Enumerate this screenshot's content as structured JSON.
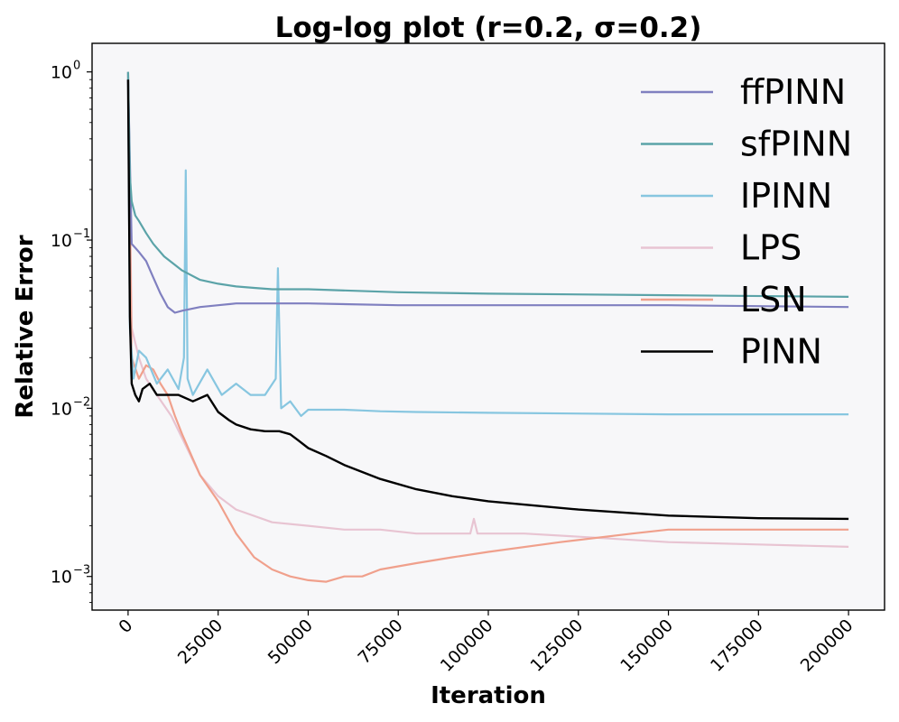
{
  "chart_data": {
    "type": "line",
    "title": "Log-log plot (r=0.2, σ=0.2)",
    "xlabel": "Iteration",
    "ylabel": "Relative Error",
    "xlim": [
      -10000,
      210000
    ],
    "ylim_log10": [
      -3.2,
      0.17
    ],
    "yscale": "log",
    "grid": false,
    "legend_position": "top-right",
    "background": "#f7f7f9",
    "x_ticks": [
      0,
      25000,
      50000,
      75000,
      100000,
      125000,
      150000,
      175000,
      200000
    ],
    "x_tick_labels": [
      "0",
      "25000",
      "50000",
      "75000",
      "100000",
      "125000",
      "150000",
      "175000",
      "200000"
    ],
    "y_ticks": [
      0.001,
      0.01,
      0.1,
      1
    ],
    "y_tick_labels": [
      {
        "base": "10",
        "exp": "−3"
      },
      {
        "base": "10",
        "exp": "−2"
      },
      {
        "base": "10",
        "exp": "−1"
      },
      {
        "base": "10",
        "exp": "0"
      }
    ],
    "series": [
      {
        "name": "ffPINN",
        "color": "#8080c0",
        "x": [
          0,
          1000,
          2000,
          3000,
          5000,
          7000,
          9000,
          11000,
          13000,
          15000,
          20000,
          25000,
          30000,
          40000,
          50000,
          75000,
          100000,
          150000,
          200000
        ],
        "y": [
          0.9,
          0.095,
          0.09,
          0.085,
          0.075,
          0.06,
          0.048,
          0.04,
          0.037,
          0.038,
          0.04,
          0.041,
          0.042,
          0.042,
          0.042,
          0.041,
          0.041,
          0.041,
          0.04
        ]
      },
      {
        "name": "sfPINN",
        "color": "#5ba3a8",
        "x": [
          0,
          500,
          1000,
          2000,
          3000,
          5000,
          7000,
          10000,
          15000,
          20000,
          25000,
          30000,
          35000,
          40000,
          50000,
          75000,
          100000,
          150000,
          200000
        ],
        "y": [
          1.0,
          0.24,
          0.17,
          0.14,
          0.13,
          0.11,
          0.095,
          0.08,
          0.066,
          0.058,
          0.055,
          0.053,
          0.052,
          0.051,
          0.051,
          0.049,
          0.048,
          0.047,
          0.046
        ]
      },
      {
        "name": "IPINN",
        "color": "#87c6e0",
        "x": [
          0,
          500,
          1500,
          3000,
          5000,
          8000,
          11000,
          14000,
          15500,
          16000,
          16500,
          18000,
          22000,
          26000,
          30000,
          34000,
          38000,
          41000,
          41600,
          42500,
          45000,
          48000,
          50000,
          55000,
          60000,
          65000,
          70000,
          80000,
          100000,
          150000,
          200000
        ],
        "y": [
          1.0,
          0.03,
          0.015,
          0.022,
          0.02,
          0.014,
          0.017,
          0.013,
          0.02,
          0.26,
          0.015,
          0.012,
          0.017,
          0.012,
          0.014,
          0.012,
          0.012,
          0.015,
          0.068,
          0.01,
          0.011,
          0.009,
          0.0098,
          0.0098,
          0.0098,
          0.0097,
          0.0096,
          0.0095,
          0.0094,
          0.0092,
          0.0092
        ]
      },
      {
        "name": "LPS",
        "color": "#e8c4d2",
        "x": [
          0,
          1000,
          3000,
          5000,
          8000,
          12000,
          16000,
          20000,
          25000,
          30000,
          40000,
          50000,
          60000,
          70000,
          80000,
          95000,
          96000,
          97000,
          110000,
          130000,
          150000,
          175000,
          200000
        ],
        "y": [
          1.0,
          0.03,
          0.02,
          0.015,
          0.012,
          0.009,
          0.006,
          0.004,
          0.003,
          0.0025,
          0.0021,
          0.002,
          0.0019,
          0.0019,
          0.0018,
          0.0018,
          0.0022,
          0.0018,
          0.0018,
          0.0017,
          0.0016,
          0.00155,
          0.0015
        ]
      },
      {
        "name": "LSN",
        "color": "#f0a08c",
        "x": [
          0,
          1000,
          3000,
          5000,
          7000,
          9000,
          11000,
          13000,
          15000,
          18000,
          20000,
          25000,
          30000,
          35000,
          40000,
          45000,
          50000,
          55000,
          60000,
          65000,
          70000,
          80000,
          90000,
          100000,
          120000,
          140000,
          150000,
          160000,
          200000
        ],
        "y": [
          1.0,
          0.02,
          0.015,
          0.018,
          0.017,
          0.014,
          0.012,
          0.009,
          0.007,
          0.005,
          0.004,
          0.0028,
          0.0018,
          0.0013,
          0.0011,
          0.001,
          0.00095,
          0.00093,
          0.001,
          0.001,
          0.0011,
          0.0012,
          0.0013,
          0.0014,
          0.0016,
          0.0018,
          0.0019,
          0.0019,
          0.0019
        ]
      },
      {
        "name": "PINN",
        "color": "#000000",
        "x": [
          0,
          500,
          1000,
          2000,
          3000,
          4000,
          6000,
          8000,
          10000,
          14000,
          18000,
          22000,
          25000,
          28000,
          30000,
          34000,
          38000,
          42000,
          45000,
          47000,
          50000,
          55000,
          60000,
          70000,
          80000,
          90000,
          100000,
          125000,
          150000,
          175000,
          200000
        ],
        "y": [
          0.9,
          0.035,
          0.014,
          0.012,
          0.011,
          0.013,
          0.014,
          0.012,
          0.012,
          0.012,
          0.011,
          0.012,
          0.0095,
          0.0085,
          0.008,
          0.0075,
          0.0073,
          0.0073,
          0.007,
          0.0065,
          0.0058,
          0.0052,
          0.0046,
          0.0038,
          0.0033,
          0.003,
          0.0028,
          0.0025,
          0.0023,
          0.00222,
          0.0022
        ]
      }
    ]
  }
}
